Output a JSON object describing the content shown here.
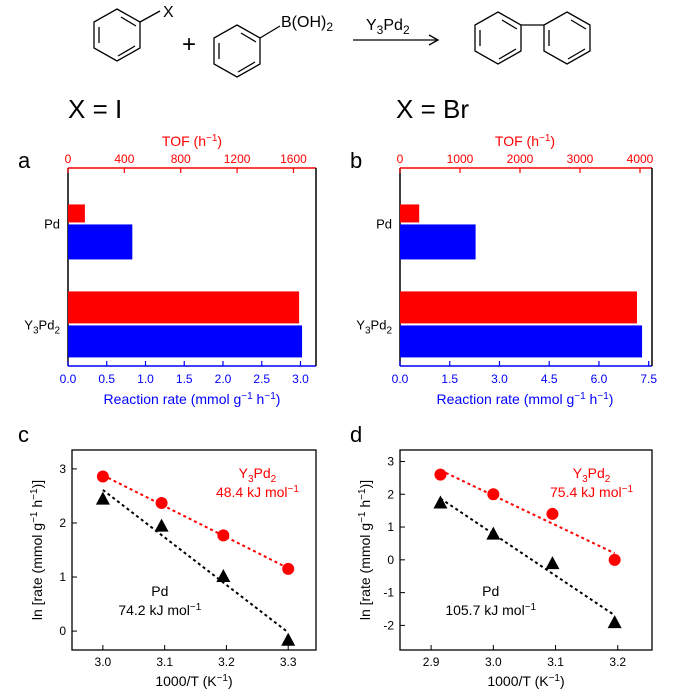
{
  "scheme": {
    "aryl_halide_label": "X",
    "plus": "+",
    "boronic_acid_label": "B(OH)",
    "boronic_acid_sub": "2",
    "catalyst_main": "Y",
    "catalyst_sub1": "3",
    "catalyst_mid": "Pd",
    "catalyst_sub2": "2"
  },
  "headings": {
    "left": "X = I",
    "right": "X = Br"
  },
  "colors": {
    "red": "#ff0000",
    "blue": "#0000ff",
    "black": "#000000"
  },
  "chart_data": [
    {
      "panel": "a",
      "type": "bar",
      "orientation": "horizontal",
      "categories": [
        "Pd",
        "Y3Pd2"
      ],
      "category_labels": [
        {
          "main": "Pd",
          "parts": []
        },
        {
          "main": "Y",
          "parts": [
            [
              "3",
              "sub"
            ],
            [
              "Pd",
              ""
            ],
            [
              "2",
              "sub"
            ]
          ]
        }
      ],
      "series": [
        {
          "axis": "top",
          "color": "#ff0000",
          "values": [
            120,
            1640
          ]
        },
        {
          "axis": "bottom",
          "color": "#0000ff",
          "values": [
            0.83,
            3.02
          ]
        }
      ],
      "top_axis": {
        "label": "TOF (h",
        "label_sup": "−1",
        "label_end": ")",
        "lim": [
          0,
          1760
        ],
        "ticks": [
          "0",
          "400",
          "800",
          "1200",
          "1600"
        ],
        "tick_values": [
          0,
          400,
          800,
          1200,
          1600
        ]
      },
      "bottom_axis": {
        "label": "Reaction rate (mmol g",
        "label_sup": "−1",
        "label_mid": " h",
        "label_sup2": "−1",
        "label_end": ")",
        "lim": [
          0,
          3.2
        ],
        "ticks": [
          "0.0",
          "0.5",
          "1.0",
          "1.5",
          "2.0",
          "2.5",
          "3.0"
        ],
        "tick_values": [
          0,
          0.5,
          1.0,
          1.5,
          2.0,
          2.5,
          3.0
        ]
      }
    },
    {
      "panel": "b",
      "type": "bar",
      "orientation": "horizontal",
      "categories": [
        "Pd",
        "Y3Pd2"
      ],
      "category_labels": [
        {
          "main": "Pd",
          "parts": []
        },
        {
          "main": "Y",
          "parts": [
            [
              "3",
              "sub"
            ],
            [
              "Pd",
              ""
            ],
            [
              "2",
              "sub"
            ]
          ]
        }
      ],
      "series": [
        {
          "axis": "top",
          "color": "#ff0000",
          "values": [
            320,
            3950
          ]
        },
        {
          "axis": "bottom",
          "color": "#0000ff",
          "values": [
            2.28,
            7.3
          ]
        }
      ],
      "top_axis": {
        "label": "TOF (h",
        "label_sup": "−1",
        "label_end": ")",
        "lim": [
          0,
          4200
        ],
        "ticks": [
          "0",
          "1000",
          "2000",
          "3000",
          "4000"
        ],
        "tick_values": [
          0,
          1000,
          2000,
          3000,
          4000
        ]
      },
      "bottom_axis": {
        "label": "Reaction rate (mmol g",
        "label_sup": "−1",
        "label_mid": " h",
        "label_sup2": "−1",
        "label_end": ")",
        "lim": [
          0,
          7.6
        ],
        "ticks": [
          "0.0",
          "1.5",
          "3.0",
          "4.5",
          "6.0",
          "7.5"
        ],
        "tick_values": [
          0,
          1.5,
          3.0,
          4.5,
          6.0,
          7.5
        ]
      }
    },
    {
      "panel": "c",
      "type": "scatter",
      "xlabel": "1000/T (K",
      "xlabel_sup": "−1",
      "xlabel_end": ")",
      "ylabel": "ln [rate (mmol g",
      "ylabel_sup": "−1",
      "ylabel_mid": " h",
      "ylabel_sup2": "−1",
      "ylabel_end": ")]",
      "xlim": [
        2.95,
        3.345
      ],
      "ylim": [
        -0.35,
        3.35
      ],
      "xticks": [
        "3.0",
        "3.1",
        "3.2",
        "3.3"
      ],
      "xtick_values": [
        3.0,
        3.1,
        3.2,
        3.3
      ],
      "yticks": [
        "0",
        "1",
        "2",
        "3"
      ],
      "ytick_values": [
        0,
        1,
        2,
        3
      ],
      "series": [
        {
          "color": "#ff0000",
          "marker": "circle",
          "x": [
            3.0,
            3.095,
            3.195,
            3.3
          ],
          "y": [
            2.86,
            2.37,
            1.77,
            1.15
          ],
          "label_main": "Y",
          "label_parts": [
            [
              "3",
              "sub"
            ],
            [
              "Pd",
              ""
            ],
            [
              "2",
              "sub"
            ]
          ],
          "energy": "48.4 kJ mol",
          "energy_sup": "−1"
        },
        {
          "color": "#000000",
          "marker": "triangle",
          "x": [
            3.0,
            3.095,
            3.195,
            3.3
          ],
          "y": [
            2.45,
            1.95,
            1.02,
            -0.16
          ],
          "label_main": "Pd",
          "label_parts": [],
          "energy": "74.2 kJ mol",
          "energy_sup": "−1"
        }
      ]
    },
    {
      "panel": "d",
      "type": "scatter",
      "xlabel": "1000/T (K",
      "xlabel_sup": "−1",
      "xlabel_end": ")",
      "ylabel": "ln [rate (mmol g",
      "ylabel_sup": "−1",
      "ylabel_mid": " h",
      "ylabel_sup2": "−1",
      "ylabel_end": ")]",
      "xlim": [
        2.85,
        3.255
      ],
      "ylim": [
        -2.75,
        3.35
      ],
      "xticks": [
        "2.9",
        "3.0",
        "3.1",
        "3.2"
      ],
      "xtick_values": [
        2.9,
        3.0,
        3.1,
        3.2
      ],
      "yticks": [
        "-2",
        "-1",
        "0",
        "1",
        "2",
        "3"
      ],
      "ytick_values": [
        -2,
        -1,
        0,
        1,
        2,
        3
      ],
      "series": [
        {
          "color": "#ff0000",
          "marker": "circle",
          "x": [
            2.915,
            3.0,
            3.095,
            3.195
          ],
          "y": [
            2.6,
            2.0,
            1.4,
            0.0
          ],
          "label_main": "Y",
          "label_parts": [
            [
              "3",
              "sub"
            ],
            [
              "Pd",
              ""
            ],
            [
              "2",
              "sub"
            ]
          ],
          "energy": "75.4 kJ mol",
          "energy_sup": "−1"
        },
        {
          "color": "#000000",
          "marker": "triangle",
          "x": [
            2.915,
            3.0,
            3.095,
            3.195
          ],
          "y": [
            1.75,
            0.8,
            -0.1,
            -1.9
          ],
          "label_main": "Pd",
          "label_parts": [],
          "energy": "105.7 kJ mol",
          "energy_sup": "−1"
        }
      ]
    }
  ]
}
